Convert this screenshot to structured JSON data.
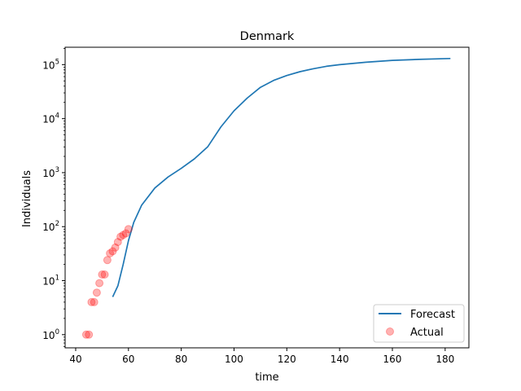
{
  "chart_data": {
    "type": "line",
    "title": "Denmark",
    "xlabel": "time",
    "ylabel": "Individuals",
    "xlim": [
      36,
      189
    ],
    "ylim": [
      0.57,
      210000
    ],
    "y_scale": "log",
    "x_ticks": [
      40,
      60,
      80,
      100,
      120,
      140,
      160,
      180
    ],
    "y_ticks": [
      1,
      10,
      100,
      1000,
      10000,
      100000
    ],
    "y_tick_labels": [
      {
        "base": "10",
        "exp": "0"
      },
      {
        "base": "10",
        "exp": "1"
      },
      {
        "base": "10",
        "exp": "2"
      },
      {
        "base": "10",
        "exp": "3"
      },
      {
        "base": "10",
        "exp": "4"
      },
      {
        "base": "10",
        "exp": "5"
      }
    ],
    "grid": false,
    "legend_position": "bottom-right",
    "series": [
      {
        "name": "Forecast",
        "kind": "line",
        "color": "#1f77b4",
        "x": [
          54,
          56,
          58,
          60,
          62,
          65,
          70,
          75,
          80,
          85,
          90,
          95,
          100,
          105,
          110,
          115,
          120,
          125,
          130,
          135,
          140,
          150,
          160,
          170,
          182
        ],
        "y": [
          5,
          8,
          20,
          55,
          120,
          250,
          520,
          830,
          1200,
          1800,
          3000,
          7000,
          14000,
          24000,
          38000,
          51000,
          63000,
          74000,
          84000,
          93000,
          100000,
          111000,
          120000,
          125000,
          130000
        ]
      },
      {
        "name": "Actual",
        "kind": "scatter",
        "color": "#ff0000",
        "x": [
          44,
          45,
          46,
          47,
          48,
          49,
          50,
          51,
          52,
          53,
          54,
          55,
          56,
          57,
          58,
          59,
          60
        ],
        "y": [
          1,
          1,
          4,
          4,
          6,
          9,
          13,
          13,
          24,
          32,
          35,
          41,
          52,
          65,
          70,
          75,
          90
        ]
      }
    ]
  }
}
